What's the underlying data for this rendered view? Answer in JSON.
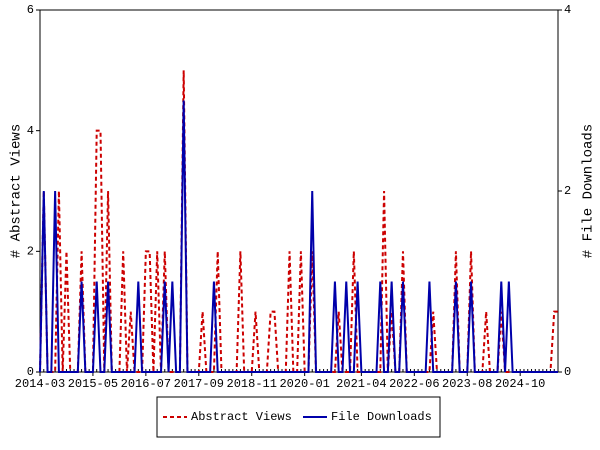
{
  "chart_data": {
    "type": "line",
    "ylabel": "# Abstract Views",
    "y2label": "# File Downloads",
    "x": [
      "2014-03",
      "2014-04",
      "2014-05",
      "2014-06",
      "2014-07",
      "2014-08",
      "2014-09",
      "2014-10",
      "2014-11",
      "2014-12",
      "2015-01",
      "2015-02",
      "2015-03",
      "2015-04",
      "2015-05",
      "2015-06",
      "2015-07",
      "2015-08",
      "2015-09",
      "2015-10",
      "2015-11",
      "2015-12",
      "2016-01",
      "2016-02",
      "2016-03",
      "2016-04",
      "2016-05",
      "2016-06",
      "2016-07",
      "2016-08",
      "2016-09",
      "2016-10",
      "2016-11",
      "2016-12",
      "2017-01",
      "2017-02",
      "2017-03",
      "2017-04",
      "2017-05",
      "2017-06",
      "2017-07",
      "2017-08",
      "2017-09",
      "2017-10",
      "2017-11",
      "2017-12",
      "2018-01",
      "2018-02",
      "2018-03",
      "2018-04",
      "2018-05",
      "2018-06",
      "2018-07",
      "2018-08",
      "2018-09",
      "2018-10",
      "2018-11",
      "2018-12",
      "2019-01",
      "2019-02",
      "2019-03",
      "2019-04",
      "2019-05",
      "2019-06",
      "2019-07",
      "2019-08",
      "2019-09",
      "2019-10",
      "2019-11",
      "2019-12",
      "2020-01",
      "2020-02",
      "2020-03",
      "2020-04",
      "2020-05",
      "2020-06",
      "2020-07",
      "2020-08",
      "2020-09",
      "2020-10",
      "2020-11",
      "2020-12",
      "2021-01",
      "2021-02",
      "2021-03",
      "2021-04",
      "2021-05",
      "2021-06",
      "2021-07",
      "2021-08",
      "2021-09",
      "2021-10",
      "2021-11",
      "2021-12",
      "2022-01",
      "2022-02",
      "2022-03",
      "2022-04",
      "2022-05",
      "2022-06",
      "2022-07",
      "2022-08",
      "2022-09",
      "2022-10",
      "2022-11",
      "2022-12",
      "2023-01",
      "2023-02",
      "2023-03",
      "2023-04",
      "2023-05",
      "2023-06",
      "2023-07",
      "2023-08",
      "2023-09",
      "2023-10",
      "2023-11",
      "2023-12",
      "2024-01",
      "2024-02",
      "2024-03",
      "2024-04",
      "2024-05",
      "2024-06",
      "2024-07",
      "2024-08",
      "2024-09",
      "2024-10",
      "2024-11",
      "2024-12",
      "2025-01",
      "2025-02",
      "2025-03",
      "2025-04",
      "2025-05",
      "2025-06",
      "2025-07",
      "2025-08"
    ],
    "xticks": [
      "2014-03",
      "2015-05",
      "2016-07",
      "2017-09",
      "2018-11",
      "2020-01",
      "2021-04",
      "2022-06",
      "2023-08",
      "2024-10"
    ],
    "ylim": [
      0,
      6
    ],
    "yticks": [
      0,
      2,
      4,
      6
    ],
    "y2lim": [
      0,
      4
    ],
    "y2ticks": [
      0,
      2,
      4
    ],
    "legend": "bottom",
    "series": [
      {
        "name": "Abstract Views",
        "color": "#cc0000",
        "dashed": true,
        "values": [
          0,
          3,
          0,
          0,
          0,
          3,
          0,
          2,
          0,
          0,
          0,
          2,
          0,
          0,
          0,
          4,
          4,
          0,
          3,
          0,
          0,
          0,
          2,
          0,
          1,
          0,
          0,
          0,
          2,
          2,
          0,
          2,
          0,
          2,
          0,
          0,
          0,
          0,
          5,
          0,
          0,
          0,
          0,
          1,
          0,
          0,
          0,
          2,
          0,
          0,
          0,
          0,
          0,
          2,
          0,
          0,
          0,
          1,
          0,
          0,
          0,
          1,
          1,
          0,
          0,
          0,
          2,
          0,
          0,
          2,
          0,
          0,
          2,
          0,
          0,
          0,
          0,
          0,
          0,
          1,
          0,
          0,
          0,
          2,
          0,
          0,
          0,
          0,
          0,
          0,
          0,
          3,
          0,
          1,
          0,
          0,
          2,
          0,
          0,
          0,
          0,
          0,
          0,
          0,
          1,
          0,
          0,
          0,
          0,
          0,
          2,
          0,
          0,
          0,
          2,
          0,
          0,
          0,
          1,
          0,
          0,
          0,
          1,
          0,
          0,
          0,
          0,
          0,
          0,
          0,
          0,
          0,
          0,
          0,
          0,
          0,
          1,
          1
        ]
      },
      {
        "name": "File Downloads",
        "color": "#0000aa",
        "axis": "y2",
        "values": [
          0,
          2,
          0,
          0,
          2,
          0,
          0,
          0,
          0,
          0,
          0,
          1,
          0,
          0,
          0,
          1,
          0,
          0,
          1,
          0,
          0,
          0,
          0,
          0,
          0,
          0,
          1,
          0,
          0,
          0,
          0,
          0,
          0,
          1,
          0,
          1,
          0,
          0,
          3,
          0,
          0,
          0,
          0,
          0,
          0,
          0,
          1,
          0,
          0,
          0,
          0,
          0,
          0,
          0,
          0,
          0,
          0,
          0,
          0,
          0,
          0,
          0,
          0,
          0,
          0,
          0,
          0,
          0,
          0,
          0,
          0,
          0,
          2,
          0,
          0,
          0,
          0,
          0,
          1,
          0,
          0,
          1,
          0,
          0,
          1,
          0,
          0,
          0,
          0,
          0,
          1,
          0,
          0,
          1,
          0,
          0,
          1,
          0,
          0,
          0,
          0,
          0,
          0,
          1,
          0,
          0,
          0,
          0,
          0,
          0,
          1,
          0,
          0,
          0,
          1,
          0,
          0,
          0,
          0,
          0,
          0,
          0,
          1,
          0,
          1,
          0,
          0,
          0,
          0,
          0,
          0,
          0,
          0,
          0,
          0,
          0,
          0,
          0
        ]
      }
    ]
  }
}
